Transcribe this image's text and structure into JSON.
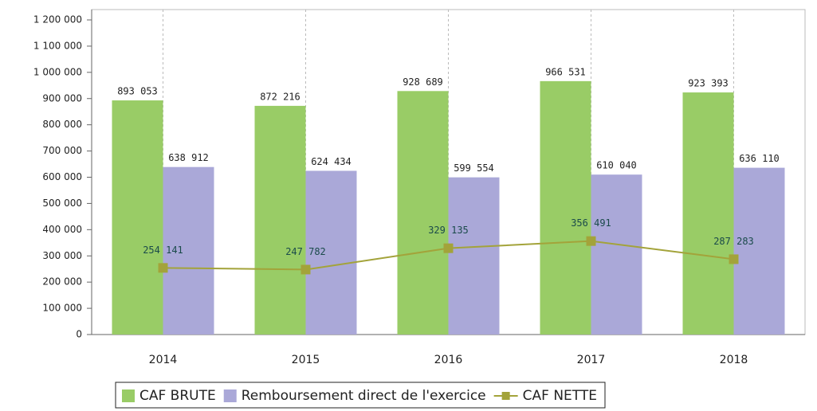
{
  "chart_data": {
    "type": "bar",
    "categories": [
      "2014",
      "2015",
      "2016",
      "2017",
      "2018"
    ],
    "series": [
      {
        "name": "CAF BRUTE",
        "type": "bar",
        "color": "#99cc66",
        "values": [
          893053,
          872216,
          928689,
          966531,
          923393
        ],
        "value_labels": [
          "893 053",
          "872 216",
          "928 689",
          "966 531",
          "923 393"
        ]
      },
      {
        "name": "Remboursement direct de l'exercice",
        "type": "bar",
        "color": "#aaa8d8",
        "values": [
          638912,
          624434,
          599554,
          610040,
          636110
        ],
        "value_labels": [
          "638 912",
          "624 434",
          "599 554",
          "610 040",
          "636 110"
        ]
      },
      {
        "name": "CAF NETTE",
        "type": "line",
        "color": "#a3a33a",
        "values": [
          254141,
          247782,
          329135,
          356491,
          287283
        ],
        "value_labels": [
          "254 141",
          "247 782",
          "329 135",
          "356 491",
          "287 283"
        ]
      }
    ],
    "ylim": [
      0,
      1200000
    ],
    "yticks": [
      0,
      {
        "value": 100000,
        "label": "100 000"
      },
      {
        "value": 200000,
        "label": "200 000"
      },
      {
        "value": 300000,
        "label": "300 000"
      },
      {
        "value": 400000,
        "label": "400 000"
      },
      {
        "value": 500000,
        "label": "500 000"
      },
      {
        "value": 600000,
        "label": "600 000"
      },
      {
        "value": 700000,
        "label": "700 000"
      },
      {
        "value": 800000,
        "label": "800 000"
      },
      {
        "value": 900000,
        "label": "900 000"
      },
      {
        "value": 1000000,
        "label": "1 000 000"
      },
      {
        "value": 1100000,
        "label": "1 100 000"
      },
      {
        "value": 1200000,
        "label": "1 200 000"
      }
    ],
    "grid": true,
    "legend": "bottom"
  }
}
